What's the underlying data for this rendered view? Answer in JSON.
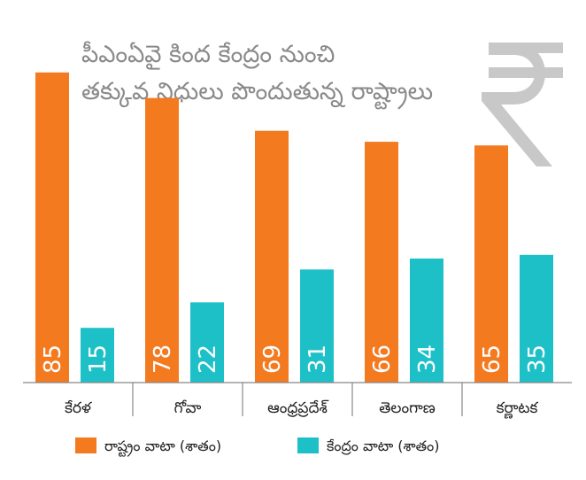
{
  "chart_data": {
    "type": "bar",
    "title_lines": [
      "పీఎంఏవై కింద కేంద్రం నుంచి",
      "తక్కువ నిధులు పొందుతున్న రాష్ట్రాలు"
    ],
    "categories": [
      "కేరళ",
      "గోవా",
      "ఆంధ్రప్రదేశ్",
      "తెలంగాణ",
      "కర్ణాటక"
    ],
    "series": [
      {
        "name": "రాష్ట్రం వాటా (శాతం)",
        "color": "#f47a20",
        "values": [
          85,
          78,
          69,
          66,
          65
        ]
      },
      {
        "name": "కేంద్రం వాటా (శాతం)",
        "color": "#1ec0c8",
        "values": [
          15,
          22,
          31,
          34,
          35
        ]
      }
    ],
    "ylim": [
      0,
      100
    ],
    "grid": false,
    "legend": "bottom",
    "value_labels": "rotated-inside-bar",
    "decoration": "rupee-symbol-icon"
  }
}
